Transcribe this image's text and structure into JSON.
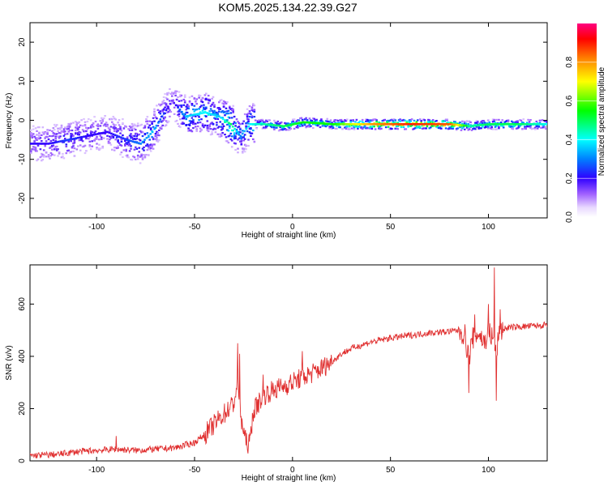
{
  "title": "KOM5.2025.134.22.39.G27",
  "chart_data": [
    {
      "type": "heatmap",
      "xlabel": "Height of straight line (km)",
      "ylabel": "Frequency (Hz)",
      "xlim": [
        -134,
        130
      ],
      "ylim": [
        -25,
        25
      ],
      "xticks": [
        -100,
        -50,
        0,
        50,
        100
      ],
      "yticks": [
        -20,
        -10,
        0,
        10,
        20
      ],
      "colorbar": {
        "label": "Normalized spectral amplitude",
        "range": [
          0,
          1
        ],
        "ticks": [
          "0.0",
          "0.2",
          "0.4",
          "0.6",
          "0.8"
        ]
      },
      "ridge": {
        "x": [
          -125,
          -115,
          -105,
          -95,
          -85,
          -78,
          -72,
          -62,
          -55,
          -45,
          -38,
          -32,
          -27,
          -22,
          -15,
          -5,
          5,
          20,
          40,
          60,
          80,
          90,
          100,
          115,
          130
        ],
        "y": [
          -6,
          -5,
          -4,
          -3,
          -5,
          -6,
          -3,
          5,
          1,
          2,
          1,
          -1,
          -4,
          -1,
          -1,
          -1.5,
          -0.5,
          -1,
          -1,
          -1,
          -1,
          -1.5,
          -1,
          -1,
          -1
        ],
        "peak_amplitude": [
          0.2,
          0.25,
          0.2,
          0.2,
          0.25,
          0.3,
          0.35,
          0.15,
          0.35,
          0.4,
          0.35,
          0.5,
          0.3,
          0.4,
          0.45,
          0.5,
          0.55,
          0.55,
          0.8,
          0.9,
          0.85,
          0.45,
          0.5,
          0.5,
          0.4
        ]
      }
    },
    {
      "type": "line",
      "xlabel": "Height of straight line (km)",
      "ylabel": "SNR (v/v)",
      "xlim": [
        -134,
        130
      ],
      "ylim": [
        0,
        750
      ],
      "xticks": [
        -100,
        -50,
        0,
        50,
        100
      ],
      "yticks": [
        0,
        200,
        400,
        600
      ],
      "series": [
        {
          "color": "#e03030",
          "x": [
            -134,
            -120,
            -110,
            -100,
            -90,
            -80,
            -70,
            -60,
            -50,
            -45,
            -40,
            -35,
            -30,
            -28,
            -26,
            -24,
            -22,
            -20,
            -15,
            -10,
            -5,
            0,
            5,
            10,
            15,
            20,
            25,
            30,
            40,
            50,
            60,
            70,
            80,
            85,
            88,
            90,
            92,
            95,
            98,
            100,
            102,
            104,
            106,
            110,
            120,
            130
          ],
          "y": [
            20,
            25,
            35,
            40,
            45,
            40,
            45,
            50,
            70,
            100,
            140,
            180,
            220,
            300,
            150,
            80,
            60,
            190,
            250,
            270,
            285,
            300,
            320,
            335,
            355,
            380,
            410,
            430,
            455,
            470,
            480,
            490,
            495,
            500,
            480,
            390,
            470,
            490,
            450,
            500,
            470,
            420,
            500,
            510,
            515,
            520
          ],
          "spikes": [
            {
              "x": -90,
              "y": 95
            },
            {
              "x": -28,
              "y": 450
            },
            {
              "x": -27,
              "y": 410
            },
            {
              "x": -23,
              "y": 40
            },
            {
              "x": -15,
              "y": 330
            },
            {
              "x": 5,
              "y": 420
            },
            {
              "x": 90,
              "y": 260
            },
            {
              "x": 93,
              "y": 560
            },
            {
              "x": 100,
              "y": 600
            },
            {
              "x": 103,
              "y": 740
            },
            {
              "x": 104,
              "y": 230
            },
            {
              "x": 106,
              "y": 580
            }
          ]
        }
      ]
    }
  ]
}
